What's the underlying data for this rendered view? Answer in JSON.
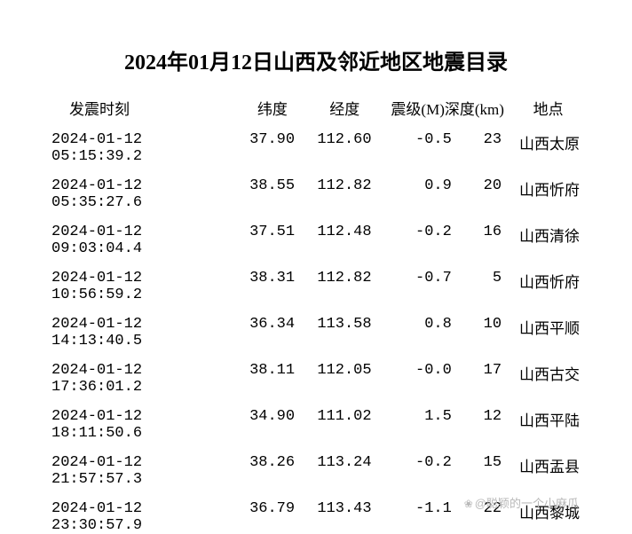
{
  "title": "2024年01月12日山西及邻近地区地震目录",
  "headers": {
    "time": "发震时刻",
    "lat": "纬度",
    "lon": "经度",
    "mag_depth": "震级(M)深度(km)",
    "loc": "地点"
  },
  "rows": [
    {
      "time": "2024-01-12 05:15:39.2",
      "lat": "37.90",
      "lon": "112.60",
      "mag": "-0.5",
      "depth": "23",
      "loc": "山西太原"
    },
    {
      "time": "2024-01-12 05:35:27.6",
      "lat": "38.55",
      "lon": "112.82",
      "mag": "0.9",
      "depth": "20",
      "loc": "山西忻府"
    },
    {
      "time": "2024-01-12 09:03:04.4",
      "lat": "37.51",
      "lon": "112.48",
      "mag": "-0.2",
      "depth": "16",
      "loc": "山西清徐"
    },
    {
      "time": "2024-01-12 10:56:59.2",
      "lat": "38.31",
      "lon": "112.82",
      "mag": "-0.7",
      "depth": "5",
      "loc": "山西忻府"
    },
    {
      "time": "2024-01-12 14:13:40.5",
      "lat": "36.34",
      "lon": "113.58",
      "mag": "0.8",
      "depth": "10",
      "loc": "山西平顺"
    },
    {
      "time": "2024-01-12 17:36:01.2",
      "lat": "38.11",
      "lon": "112.05",
      "mag": "-0.0",
      "depth": "17",
      "loc": "山西古交"
    },
    {
      "time": "2024-01-12 18:11:50.6",
      "lat": "34.90",
      "lon": "111.02",
      "mag": "1.5",
      "depth": "12",
      "loc": "山西平陆"
    },
    {
      "time": "2024-01-12 21:57:57.3",
      "lat": "38.26",
      "lon": "113.24",
      "mag": "-0.2",
      "depth": "15",
      "loc": "山西盂县"
    },
    {
      "time": "2024-01-12 23:30:57.9",
      "lat": "36.79",
      "lon": "113.43",
      "mag": "-1.1",
      "depth": "22",
      "loc": "山西黎城"
    }
  ],
  "watermark": {
    "icon": "❀",
    "text": "@聪颖的一个小麻瓜"
  }
}
